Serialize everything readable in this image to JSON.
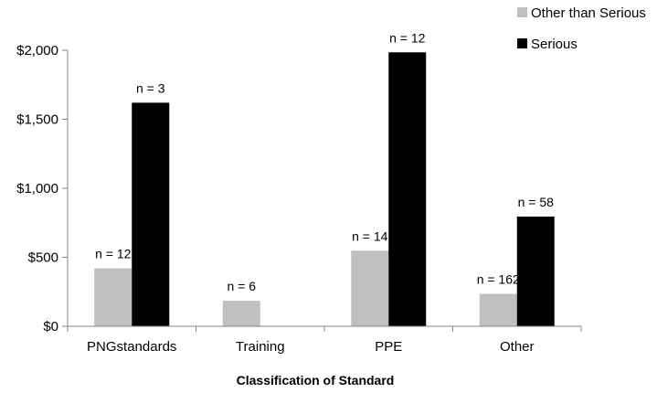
{
  "chart_data": {
    "type": "bar",
    "title": "",
    "xlabel": "Classification of Standard",
    "ylabel": "",
    "categories": [
      "PNGstandards",
      "Training",
      "PPE",
      "Other"
    ],
    "ylim": [
      0,
      2000
    ],
    "yticks": [
      0,
      500,
      1000,
      1500,
      2000
    ],
    "ytick_labels": [
      "$0",
      "$500",
      "$1,000",
      "$1,500",
      "$2,000"
    ],
    "grid": false,
    "legend_position": "top-right",
    "series": [
      {
        "name": "Other than Serious",
        "color": "#c0c0c0",
        "values": [
          420,
          185,
          548,
          235
        ],
        "labels": [
          "n = 12",
          "n = 6",
          "n = 14",
          "n = 162"
        ]
      },
      {
        "name": "Serious",
        "color": "#000000",
        "values": [
          1620,
          null,
          1985,
          795
        ],
        "labels": [
          "n = 3",
          "",
          "n = 12",
          "n = 58"
        ]
      }
    ]
  }
}
